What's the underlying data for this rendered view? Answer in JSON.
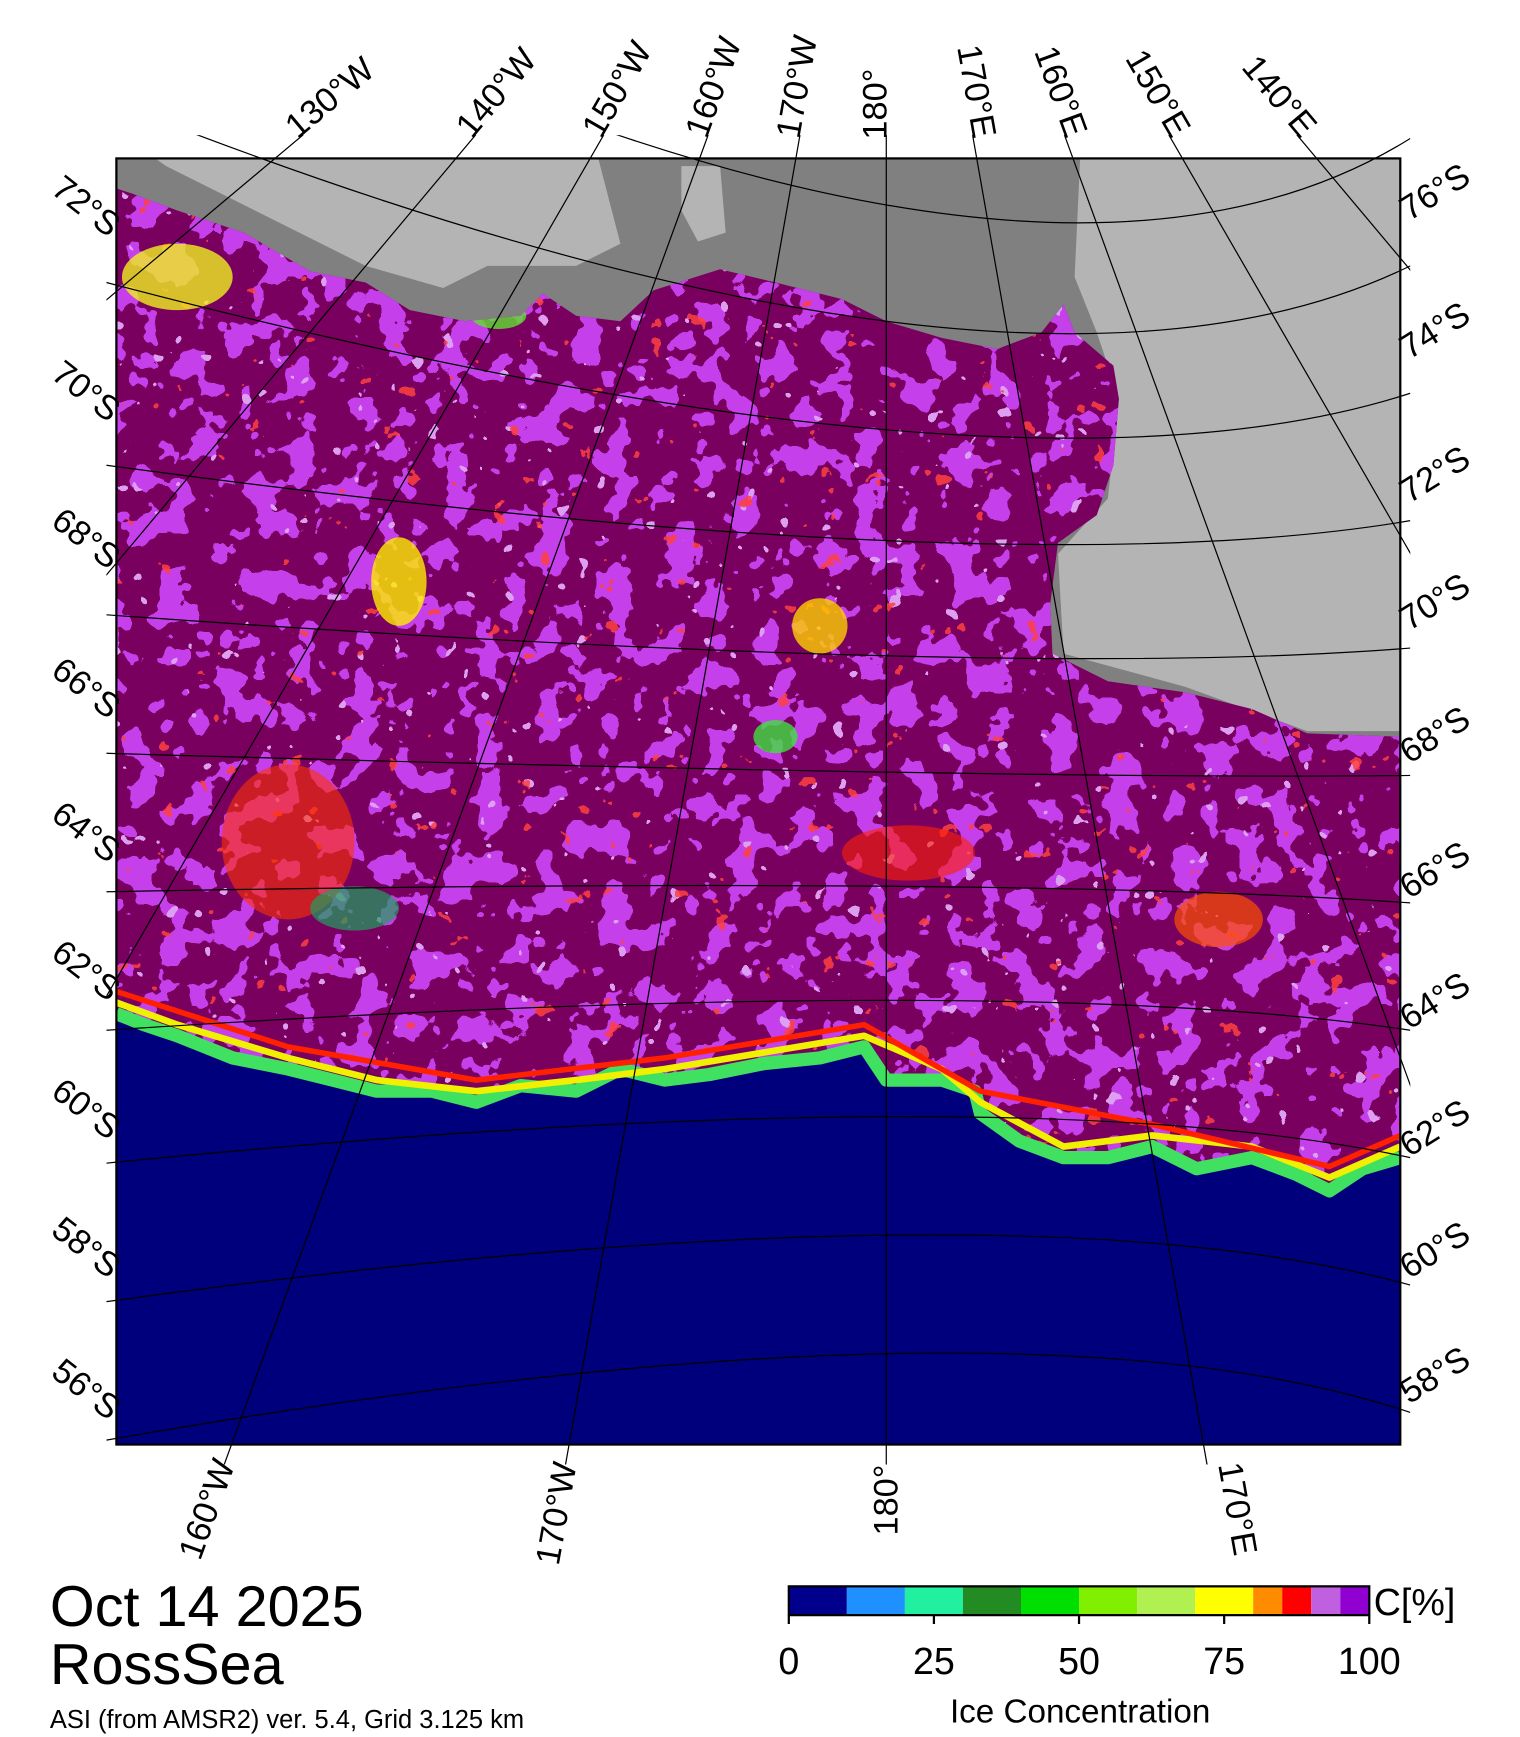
{
  "header": {
    "date": "Oct 14 2025",
    "region": "RossSea",
    "source": "ASI (from AMSR2) ver. 5.4,  Grid 3.125 km"
  },
  "map": {
    "lon_labels_top": [
      "130°W",
      "140°W",
      "150°W",
      "160°W",
      "170°W",
      "180°",
      "170°E",
      "160°E",
      "150°E",
      "140°E"
    ],
    "lon_labels_bottom": [
      "160°W",
      "170°W",
      "180°",
      "170°E"
    ],
    "lat_labels_left": [
      "72°S",
      "70°S",
      "68°S",
      "66°S",
      "64°S",
      "62°S",
      "60°S",
      "58°S",
      "56°S"
    ],
    "lat_labels_right": [
      "76°S",
      "74°S",
      "72°S",
      "70°S",
      "68°S",
      "66°S",
      "64°S",
      "62°S",
      "60°S",
      "58°S"
    ]
  },
  "colorbar": {
    "title": "Ice Concentration",
    "unit": "C[%]",
    "ticks": [
      0,
      25,
      50,
      75,
      100
    ],
    "bounds": [
      0,
      10,
      20,
      30,
      40,
      50,
      60,
      70,
      80,
      85,
      90,
      95,
      100
    ],
    "colors": [
      "#00008c",
      "#1e90ff",
      "#20f0a0",
      "#228b22",
      "#00e000",
      "#80f000",
      "#b0f050",
      "#ffff00",
      "#ff8c00",
      "#ff0000",
      "#c060e0",
      "#9000d0"
    ]
  }
}
